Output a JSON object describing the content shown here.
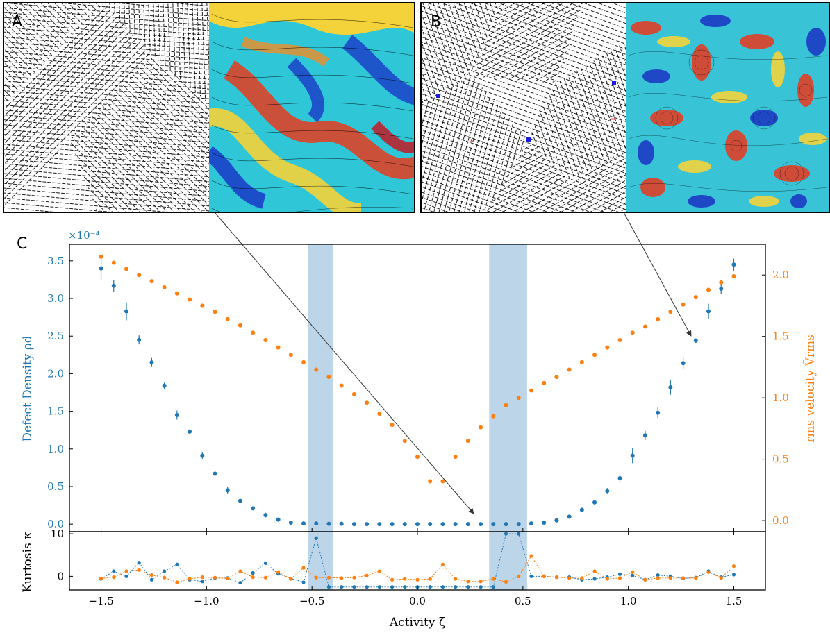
{
  "panels": {
    "a_label": "A",
    "b_label": "B",
    "c_label": "C"
  },
  "colors": {
    "defect_series": "#1f77b4",
    "velocity_series": "#ff7f0e",
    "shade": "#bcd5e8",
    "frame": "#000000"
  },
  "chart_data": [
    {
      "type": "scatter",
      "panel": "C (top)",
      "xlabel": "",
      "ylabel_left": "Defect Density  ρd",
      "ylabel_right": "rms velocity  V̄rms",
      "left_multiplier": "×10⁻⁴",
      "xlim": [
        -1.65,
        1.65
      ],
      "ylim_left": [
        -0.1,
        3.72
      ],
      "ylim_right": [
        -0.09,
        2.25
      ],
      "left_ticks": [
        "0.0",
        "0.5",
        "1.0",
        "1.5",
        "2.0",
        "2.5",
        "3.0",
        "3.5"
      ],
      "right_ticks": [
        "0.0",
        "0.5",
        "1.0",
        "1.5",
        "2.0"
      ],
      "shaded_x_ranges": [
        [
          -0.52,
          -0.4
        ],
        [
          0.34,
          0.52
        ]
      ],
      "x": [
        -1.5,
        -1.44,
        -1.38,
        -1.32,
        -1.26,
        -1.2,
        -1.14,
        -1.08,
        -1.02,
        -0.96,
        -0.9,
        -0.84,
        -0.78,
        -0.72,
        -0.66,
        -0.6,
        -0.54,
        -0.48,
        -0.42,
        -0.36,
        -0.3,
        -0.24,
        -0.18,
        -0.12,
        -0.06,
        0.0,
        0.06,
        0.12,
        0.18,
        0.24,
        0.3,
        0.36,
        0.42,
        0.48,
        0.54,
        0.6,
        0.66,
        0.72,
        0.78,
        0.84,
        0.9,
        0.96,
        1.02,
        1.08,
        1.14,
        1.2,
        1.26,
        1.32,
        1.38,
        1.44,
        1.5
      ],
      "series": [
        {
          "name": "Defect Density",
          "axis": "left",
          "values": [
            3.4,
            3.17,
            2.83,
            2.45,
            2.15,
            1.84,
            1.45,
            1.23,
            0.91,
            0.67,
            0.45,
            0.31,
            0.21,
            0.12,
            0.06,
            0.02,
            0.01,
            0.01,
            0.005,
            0.005,
            0.0,
            0.0,
            0.0,
            0.0,
            0.0,
            0.0,
            0.0,
            0.0,
            0.0,
            0.0,
            0.0,
            0.0,
            0.0,
            0.0,
            0.01,
            0.02,
            0.05,
            0.1,
            0.19,
            0.29,
            0.44,
            0.61,
            0.91,
            1.18,
            1.48,
            1.82,
            2.14,
            2.44,
            2.83,
            3.13,
            3.45
          ],
          "errors": [
            0.15,
            0.08,
            0.12,
            0.06,
            0.06,
            0.04,
            0.06,
            0.03,
            0.05,
            0.03,
            0.05,
            0.02,
            0.02,
            0.03,
            0.01,
            0.0,
            0.0,
            0.0,
            0.0,
            0.0,
            0.0,
            0.0,
            0.0,
            0.0,
            0.0,
            0.0,
            0.0,
            0.0,
            0.0,
            0.0,
            0.0,
            0.0,
            0.0,
            0.0,
            0.0,
            0.0,
            0.0,
            0.0,
            0.03,
            0.03,
            0.04,
            0.06,
            0.1,
            0.06,
            0.07,
            0.1,
            0.08,
            0.03,
            0.1,
            0.07,
            0.08
          ]
        },
        {
          "name": "rms velocity",
          "axis": "right",
          "values": [
            2.15,
            2.1,
            2.05,
            2.0,
            1.95,
            1.9,
            1.85,
            1.8,
            1.75,
            1.7,
            1.64,
            1.59,
            1.53,
            1.47,
            1.41,
            1.35,
            1.29,
            1.23,
            1.17,
            1.1,
            1.03,
            0.96,
            0.87,
            0.78,
            0.65,
            0.52,
            0.32,
            0.32,
            0.52,
            0.65,
            0.76,
            0.85,
            0.94,
            1.0,
            1.06,
            1.12,
            1.17,
            1.23,
            1.29,
            1.35,
            1.41,
            1.47,
            1.53,
            1.58,
            1.64,
            1.7,
            1.76,
            1.82,
            1.88,
            1.94,
            1.99
          ]
        }
      ]
    },
    {
      "type": "line",
      "panel": "C (bottom)",
      "xlabel": "Activity  ζ̄",
      "ylabel": "Kurtosis  κ",
      "xlim": [
        -1.65,
        1.65
      ],
      "ylim": [
        -3.2,
        10.5
      ],
      "x_ticks": [
        "−1.5",
        "−1.0",
        "−0.5",
        "0.0",
        "0.5",
        "1.0",
        "1.5"
      ],
      "y_ticks": [
        "0",
        "10"
      ],
      "shaded_x_ranges": [
        [
          -0.52,
          -0.4
        ],
        [
          0.34,
          0.52
        ]
      ],
      "x": [
        -1.5,
        -1.44,
        -1.38,
        -1.32,
        -1.26,
        -1.2,
        -1.14,
        -1.08,
        -1.02,
        -0.96,
        -0.9,
        -0.84,
        -0.78,
        -0.72,
        -0.66,
        -0.6,
        -0.54,
        -0.48,
        -0.42,
        -0.36,
        -0.3,
        -0.24,
        -0.18,
        -0.12,
        -0.06,
        0.0,
        0.06,
        0.12,
        0.18,
        0.24,
        0.3,
        0.36,
        0.42,
        0.48,
        0.54,
        0.6,
        0.66,
        0.72,
        0.78,
        0.84,
        0.9,
        0.96,
        1.02,
        1.08,
        1.14,
        1.2,
        1.26,
        1.32,
        1.38,
        1.44,
        1.5
      ],
      "series": [
        {
          "name": "Defect Density",
          "values": [
            -0.6,
            1.2,
            0.0,
            3.2,
            -0.8,
            1.2,
            2.8,
            -0.8,
            -1.2,
            -0.4,
            -0.4,
            -1.5,
            0.8,
            3.1,
            0.6,
            -0.5,
            -1.4,
            9.0,
            -2.5,
            -2.5,
            -2.5,
            -2.5,
            -2.5,
            -2.5,
            -2.5,
            -2.5,
            -2.5,
            -2.5,
            -2.5,
            -2.5,
            -2.5,
            -2.5,
            10.0,
            10.0,
            0.0,
            0.0,
            -0.2,
            -0.2,
            -0.8,
            -0.6,
            -0.2,
            0.5,
            0.2,
            -0.8,
            0.3,
            0.0,
            -0.5,
            -0.3,
            1.2,
            -0.2,
            0.4
          ]
        },
        {
          "name": "rms velocity",
          "values": [
            -0.5,
            -0.2,
            1.2,
            1.5,
            0.3,
            -0.3,
            -1.4,
            -0.6,
            -0.2,
            -0.3,
            -0.5,
            1.2,
            -0.2,
            -0.3,
            1.0,
            -0.6,
            2.0,
            -0.3,
            -0.3,
            -0.4,
            -0.3,
            0.2,
            1.2,
            -0.8,
            -0.6,
            -0.8,
            -0.6,
            2.8,
            -0.6,
            -1.2,
            -1.2,
            -0.6,
            -1.3,
            0.0,
            4.8,
            0.0,
            -0.2,
            -0.4,
            -0.4,
            1.2,
            -0.6,
            -0.4,
            1.0,
            -0.8,
            -0.4,
            -0.4,
            -0.4,
            -0.4,
            1.0,
            -0.4,
            2.4
          ]
        }
      ]
    }
  ]
}
